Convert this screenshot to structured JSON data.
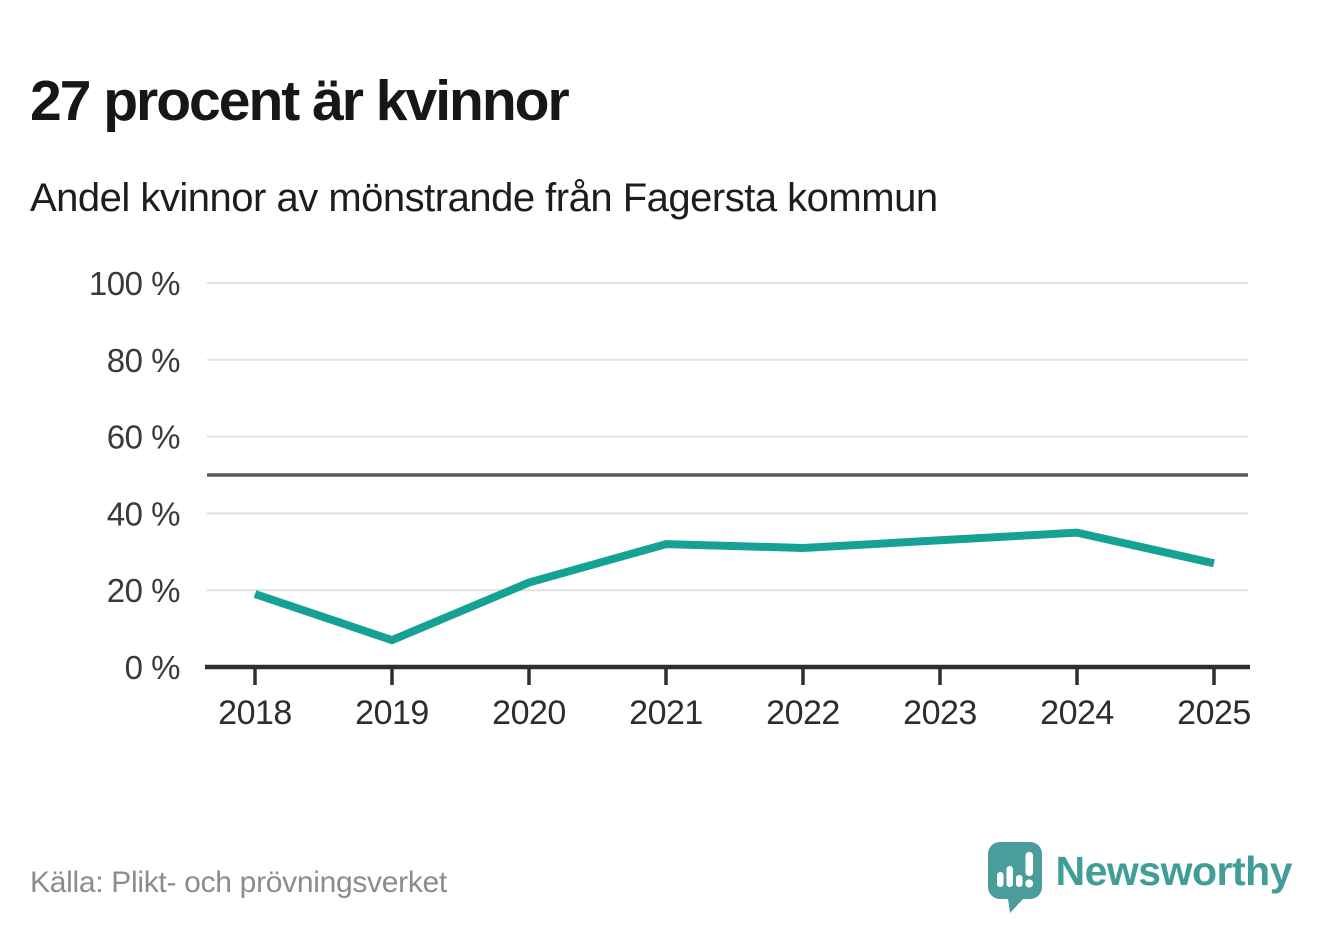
{
  "header": {
    "title": "27 procent är kvinnor",
    "subtitle": "Andel kvinnor av mönstrande från Fagersta kommun"
  },
  "footer": {
    "source": "Källa: Plikt- och prövningsverket",
    "brand": "Newsworthy"
  },
  "chart_data": {
    "type": "line",
    "title": "27 procent är kvinnor",
    "subtitle": "Andel kvinnor av mönstrande från Fagersta kommun",
    "x": [
      "2018",
      "2019",
      "2020",
      "2021",
      "2022",
      "2023",
      "2024",
      "2025"
    ],
    "series": [
      {
        "name": "Andel kvinnor av mönstrande",
        "values": [
          19,
          7,
          22,
          32,
          31,
          33,
          35,
          27
        ]
      }
    ],
    "xlabel": "",
    "ylabel": "",
    "ylim": [
      0,
      100
    ],
    "yticks": [
      0,
      20,
      40,
      60,
      80,
      100
    ],
    "ytick_format": "{v} %",
    "reference_line": 50,
    "grid": true,
    "legend": "none",
    "source": "Källa: Plikt- och prövningsverket"
  },
  "colors": {
    "accent_line": "#16a195",
    "grid": "#e2e2e2",
    "reference_line": "#58595b",
    "axis": "#2e2e2e",
    "axis_label": "#3a3a3a",
    "title_text": "#171717",
    "muted_text": "#8c8c8c",
    "logo_fill": "#4a9d9b",
    "brand_text": "#3f9f97"
  }
}
